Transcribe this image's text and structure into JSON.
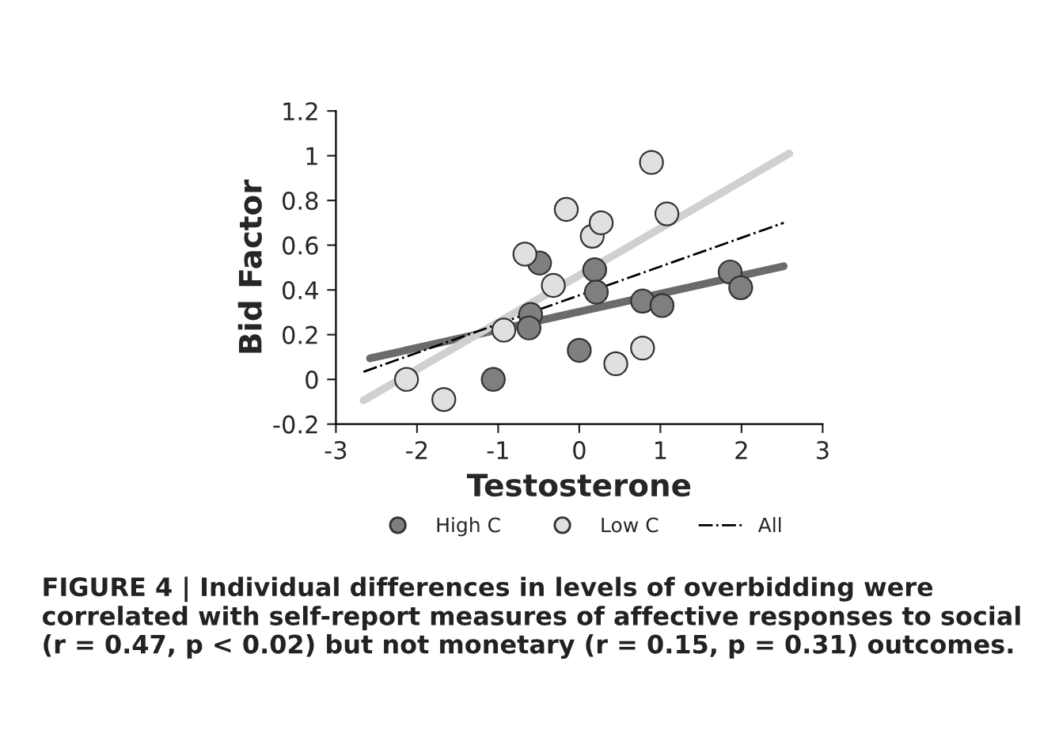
{
  "chart_data": {
    "type": "scatter",
    "xlabel": "Testosterone",
    "ylabel": "Bid Factor",
    "xlim": [
      -3,
      3
    ],
    "xticks": [
      -3,
      -2,
      -1,
      0,
      1,
      2,
      3
    ],
    "ylim": [
      -0.2,
      1.2
    ],
    "yticks": [
      -0.2,
      0,
      0.2,
      0.4,
      0.6,
      0.8,
      1,
      1.2
    ],
    "grid": false,
    "legend": "bottom",
    "series": [
      {
        "name": "High C",
        "marker": "circle",
        "color": "#7f7f7f",
        "x": [
          -0.49,
          0.19,
          0.21,
          -0.6,
          -0.62,
          -1.06,
          0.0,
          0.78,
          1.02,
          1.86,
          1.99
        ],
        "values": [
          0.52,
          0.49,
          0.39,
          0.29,
          0.23,
          0.0,
          0.13,
          0.35,
          0.33,
          0.48,
          0.41
        ]
      },
      {
        "name": "Low C",
        "marker": "circle",
        "color": "#e0e0e0",
        "x": [
          -2.13,
          -1.67,
          -0.93,
          -0.67,
          -0.32,
          -0.16,
          0.16,
          0.27,
          0.89,
          1.08,
          0.45,
          0.78
        ],
        "values": [
          0.0,
          -0.09,
          0.22,
          0.56,
          0.42,
          0.76,
          0.64,
          0.7,
          0.97,
          0.74,
          0.07,
          0.14
        ]
      },
      {
        "type": "line",
        "color": "#6b6b6b",
        "line_style": "solid",
        "x": [
          -2.58,
          2.52
        ],
        "values": [
          0.094,
          0.506
        ]
      },
      {
        "type": "line",
        "color": "#d0d0d0",
        "line_style": "solid",
        "x": [
          -2.66,
          2.59
        ],
        "values": [
          -0.094,
          1.01
        ]
      },
      {
        "name": "All",
        "type": "line",
        "color": "#000000",
        "line_style": "dashdot",
        "x": [
          -2.66,
          2.52
        ],
        "values": [
          0.034,
          0.7
        ]
      }
    ],
    "annotations": [
      "FIGURE 4 | Individual differences in levels of overbidding were correlated with self-report measures of affective responses to social (r = 0.47, p < 0.02) but not monetary (r = 0.15, p = 0.31) outcomes."
    ]
  }
}
